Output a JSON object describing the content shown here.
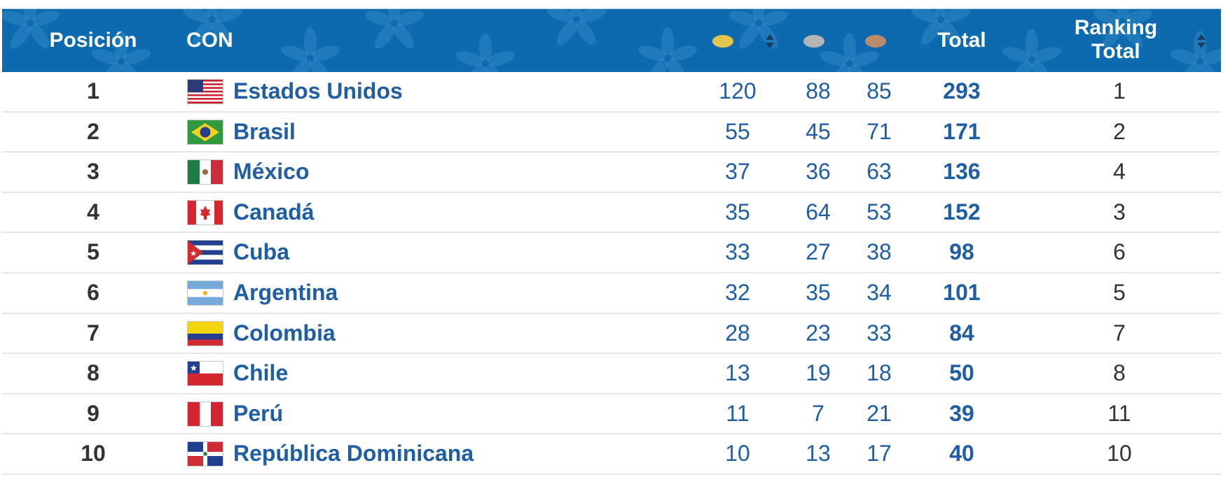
{
  "header": {
    "position_label": "Posición",
    "con_label": "CON",
    "total_label": "Total",
    "ranking_label_line1": "Ranking",
    "ranking_label_line2": "Total",
    "colors": {
      "header_bg": "#0d6aae",
      "gold": "#e3c44f",
      "silver": "#b5b5b5",
      "bronze": "#b98a6b"
    }
  },
  "rows": [
    {
      "position": "1",
      "country": "Estados Unidos",
      "flag": "us-flag",
      "gold": "120",
      "silver": "88",
      "bronze": "85",
      "total": "293",
      "ranking_total": "1"
    },
    {
      "position": "2",
      "country": "Brasil",
      "flag": "brazil-flag",
      "gold": "55",
      "silver": "45",
      "bronze": "71",
      "total": "171",
      "ranking_total": "2"
    },
    {
      "position": "3",
      "country": "México",
      "flag": "mexico-flag",
      "gold": "37",
      "silver": "36",
      "bronze": "63",
      "total": "136",
      "ranking_total": "4"
    },
    {
      "position": "4",
      "country": "Canadá",
      "flag": "canada-flag",
      "gold": "35",
      "silver": "64",
      "bronze": "53",
      "total": "152",
      "ranking_total": "3"
    },
    {
      "position": "5",
      "country": "Cuba",
      "flag": "cuba-flag",
      "gold": "33",
      "silver": "27",
      "bronze": "38",
      "total": "98",
      "ranking_total": "6"
    },
    {
      "position": "6",
      "country": "Argentina",
      "flag": "argentina-flag",
      "gold": "32",
      "silver": "35",
      "bronze": "34",
      "total": "101",
      "ranking_total": "5"
    },
    {
      "position": "7",
      "country": "Colombia",
      "flag": "colombia-flag",
      "gold": "28",
      "silver": "23",
      "bronze": "33",
      "total": "84",
      "ranking_total": "7"
    },
    {
      "position": "8",
      "country": "Chile",
      "flag": "chile-flag",
      "gold": "13",
      "silver": "19",
      "bronze": "18",
      "total": "50",
      "ranking_total": "8"
    },
    {
      "position": "9",
      "country": "Perú",
      "flag": "peru-flag",
      "gold": "11",
      "silver": "7",
      "bronze": "21",
      "total": "39",
      "ranking_total": "11"
    },
    {
      "position": "10",
      "country": "República Dominicana",
      "flag": "dominican-republic-flag",
      "gold": "10",
      "silver": "13",
      "bronze": "17",
      "total": "40",
      "ranking_total": "10"
    }
  ]
}
